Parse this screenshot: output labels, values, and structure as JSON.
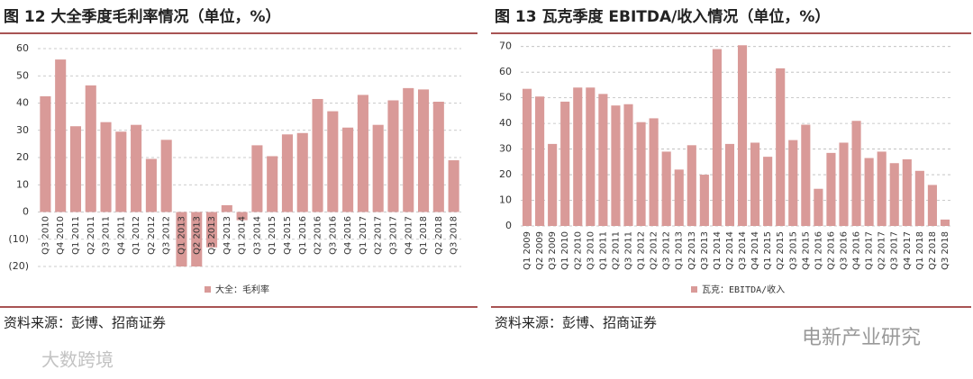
{
  "chart_data": [
    {
      "type": "bar",
      "title": "图 12  大全季度毛利率情况（单位，%）",
      "categories": [
        "Q3 2010",
        "Q4 2010",
        "Q1 2011",
        "Q2 2011",
        "Q3 2011",
        "Q4 2011",
        "Q1 2012",
        "Q2 2012",
        "Q3 2012",
        "Q1 2013",
        "Q2 2013",
        "Q3 2013",
        "Q4 2013",
        "Q1 2014",
        "Q3 2014",
        "Q1 2015",
        "Q4 2015",
        "Q1 2016",
        "Q2 2016",
        "Q3 2016",
        "Q4 2016",
        "Q1 2017",
        "Q2 2017",
        "Q3 2017",
        "Q4 2017",
        "Q1 2018",
        "Q2 2018",
        "Q3 2018"
      ],
      "series": [
        {
          "name": "大全：毛利率",
          "color": "#d99a98",
          "values": [
            42.5,
            56,
            31.5,
            46.5,
            33,
            29.5,
            32,
            19.5,
            26.5,
            -20,
            -20,
            -13,
            2.5,
            -3,
            24.5,
            20.5,
            28.5,
            29,
            41.5,
            37,
            31,
            43,
            32,
            41,
            45.5,
            45,
            40.5,
            19
          ]
        }
      ],
      "ylim": [
        -20,
        60
      ],
      "yticks": [
        {
          "value": -20,
          "label": "(20)"
        },
        {
          "value": -10,
          "label": "(10)"
        },
        0,
        10,
        20,
        30,
        40,
        50,
        60
      ],
      "grid": true,
      "source": "资料来源：彭博、招商证券"
    },
    {
      "type": "bar",
      "title": "图 13  瓦克季度 EBITDA/收入情况（单位，%）",
      "categories": [
        "Q1 2009",
        "Q2 2009",
        "Q3 2009",
        "Q1 2010",
        "Q2 2010",
        "Q3 2010",
        "Q1 2011",
        "Q2 2011",
        "Q3 2011",
        "Q1 2012",
        "Q2 2012",
        "Q3 2012",
        "Q1 2013",
        "Q2 2013",
        "Q3 2013",
        "Q1 2014",
        "Q2 2014",
        "Q3 2014",
        "Q4 2014",
        "Q1 2015",
        "Q2 2015",
        "Q3 2015",
        "Q4 2015",
        "Q1 2016",
        "Q2 2016",
        "Q3 2016",
        "Q4 2016",
        "Q1 2017",
        "Q2 2017",
        "Q3 2017",
        "Q4 2017",
        "Q1 2018",
        "Q2 2018",
        "Q3 2018"
      ],
      "series": [
        {
          "name": "瓦克：EBITDA/收入",
          "color": "#d99a98",
          "values": [
            53.5,
            50.5,
            32,
            48.5,
            54,
            54,
            51.5,
            47,
            47.5,
            40.5,
            42,
            29,
            22,
            31.5,
            20,
            69,
            32,
            70.5,
            32.5,
            27,
            61.5,
            33.5,
            39.5,
            14.5,
            28.5,
            32.5,
            41,
            26.5,
            29,
            24.5,
            26,
            21.5,
            16,
            2.5
          ]
        }
      ],
      "ylim": [
        0,
        72
      ],
      "yticks": [
        0,
        10,
        20,
        30,
        40,
        50,
        60,
        70
      ],
      "grid": true,
      "source": "资料来源：彭博、招商证券"
    }
  ],
  "watermarks": [
    "大数跨境",
    "电新产业研究"
  ]
}
